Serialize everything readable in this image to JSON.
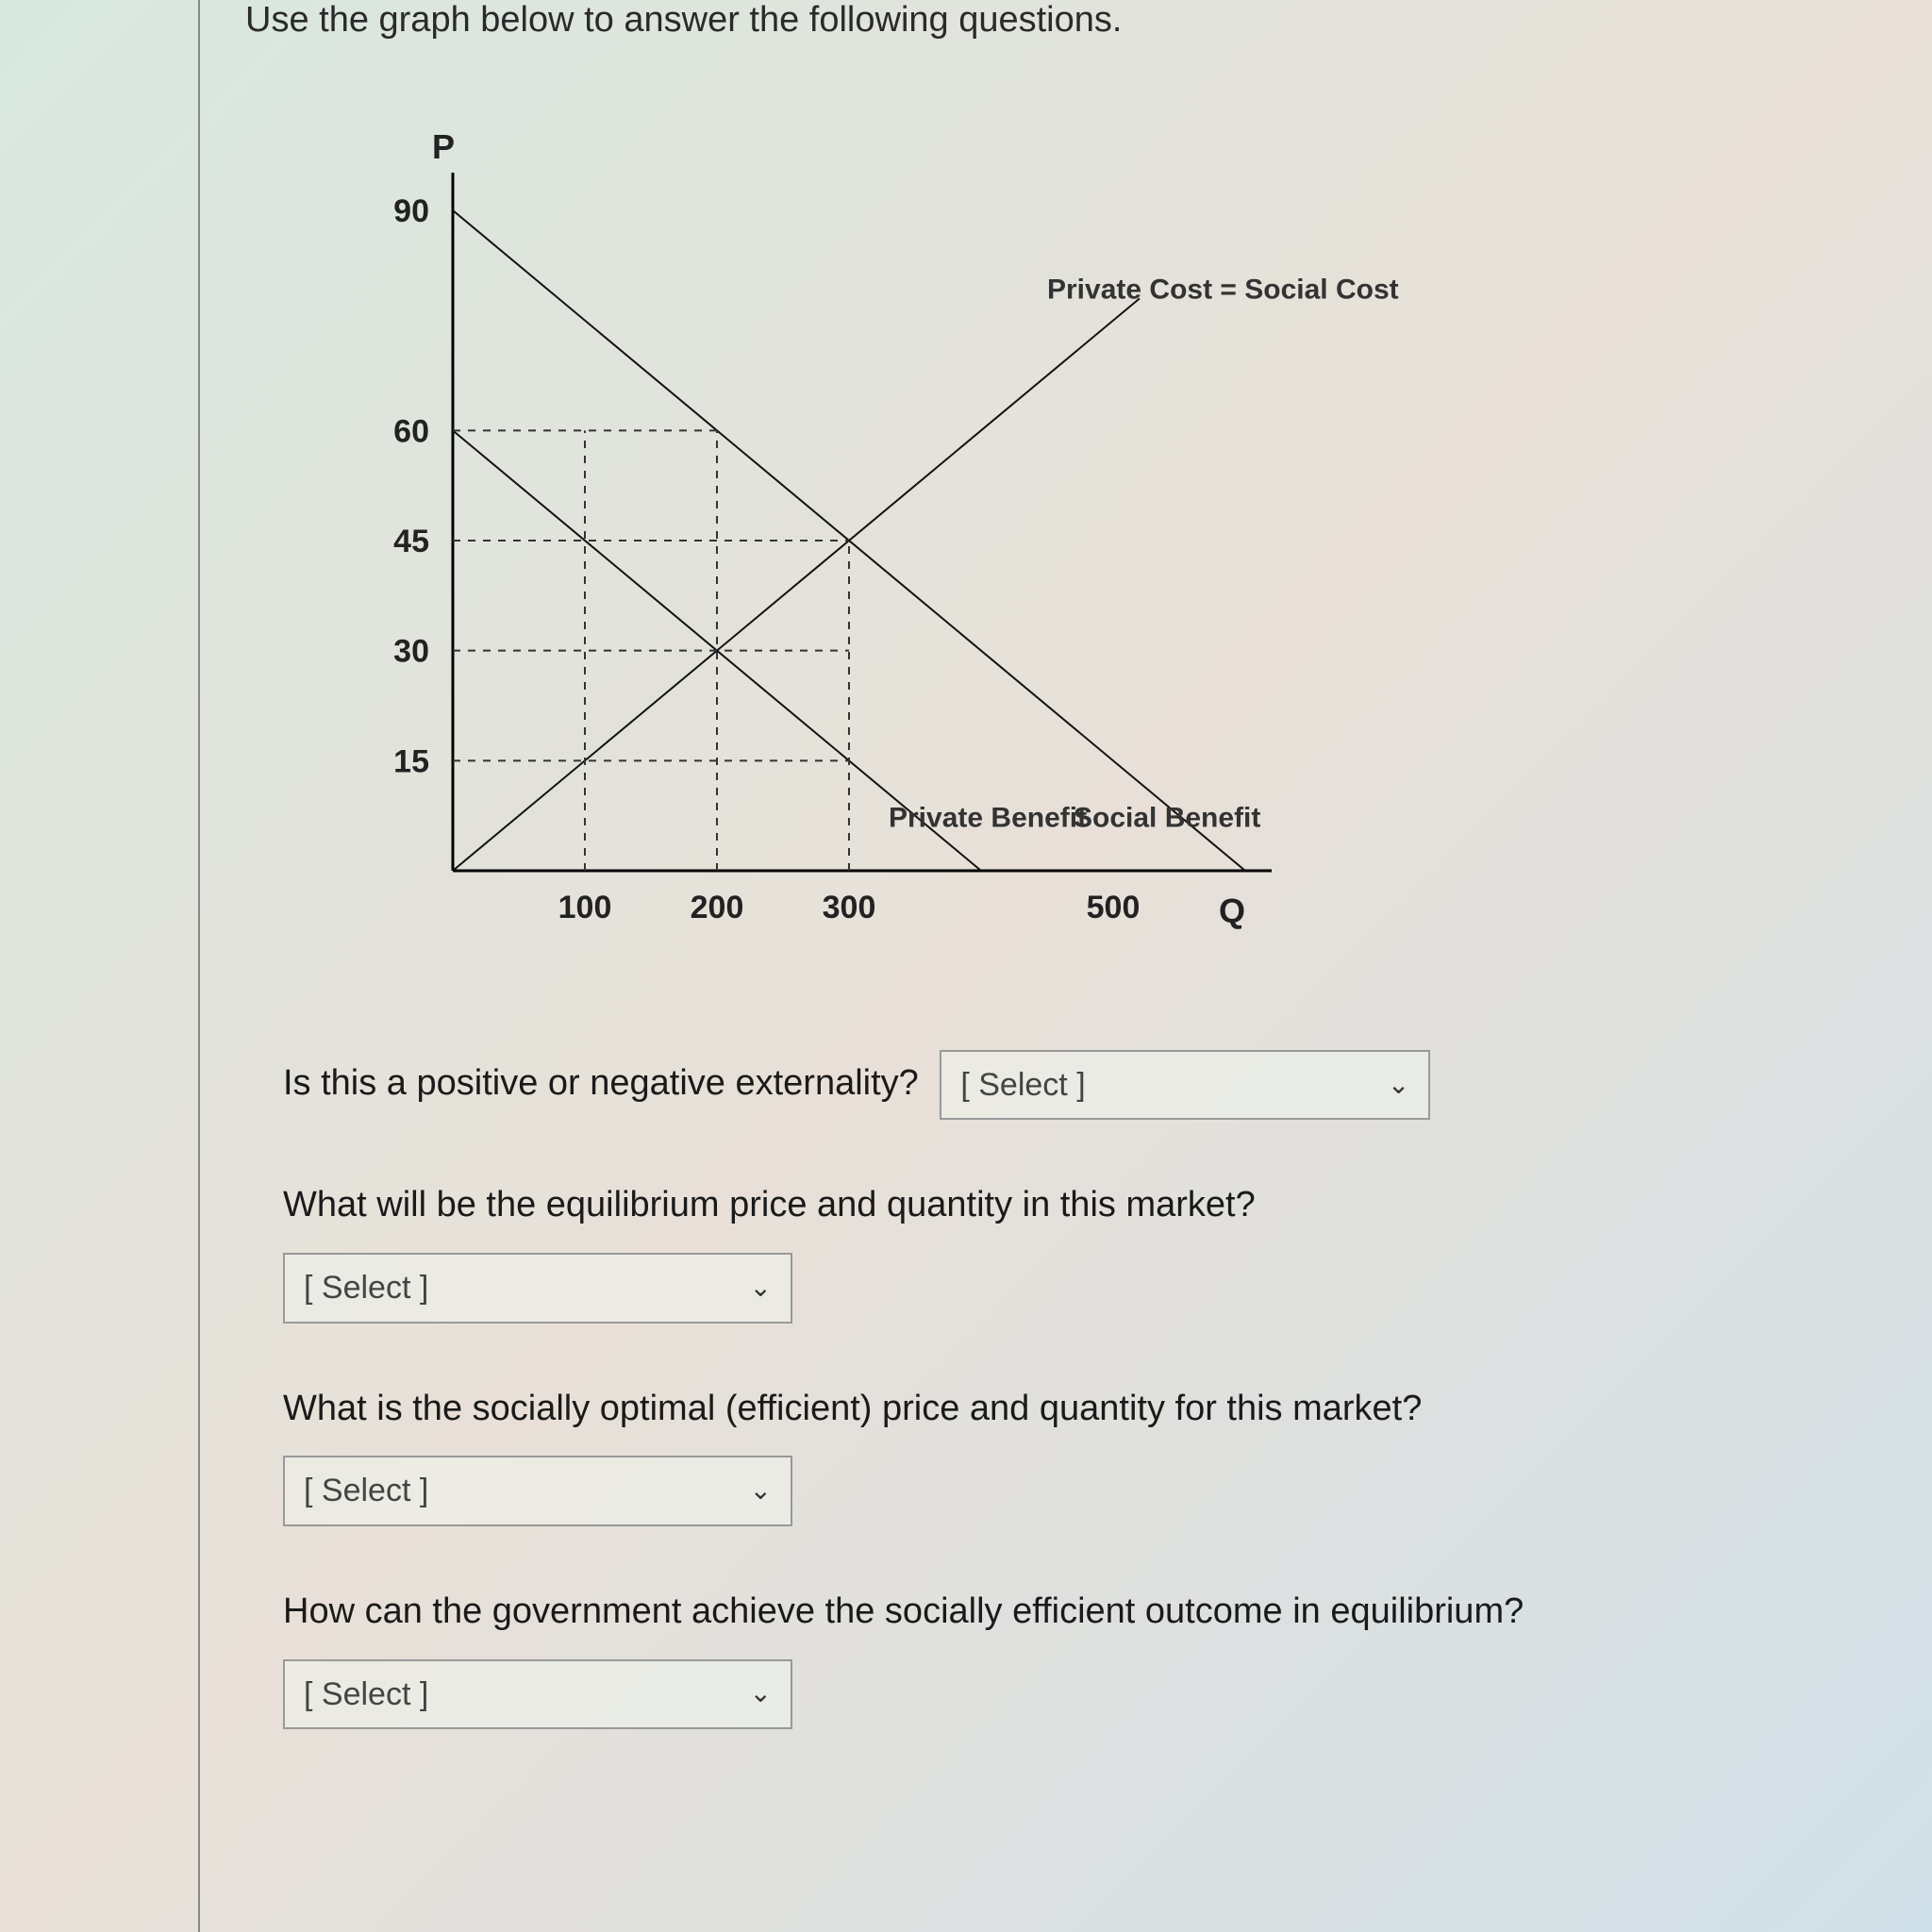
{
  "instruction": "Use the graph below to answer the following questions.",
  "chart": {
    "y_axis_label": "P",
    "x_axis_label": "Q",
    "y_ticks": [
      90,
      60,
      45,
      30,
      15
    ],
    "x_ticks": [
      100,
      200,
      300,
      500
    ],
    "x_tick_gap_after": 300,
    "pmax": 90,
    "qmax_chart": 600,
    "supply_label": "Private Cost = Social Cost",
    "private_benefit_label": "Private Benefit",
    "social_benefit_label": "Social Benefit",
    "axis_color": "#000000",
    "line_color": "#111111",
    "dash_color": "#333333",
    "dash_pattern": "8,8",
    "line_width": 2,
    "dash_width": 2,
    "ref_q": [
      100,
      200,
      300
    ],
    "ref_p": [
      15,
      30,
      45,
      60
    ]
  },
  "questions": {
    "q1": "Is this a positive or negative externality?",
    "q2": "What will be the equilibrium price and quantity in this market?",
    "q3": "What is the socially optimal (efficient) price and quantity for this market?",
    "q4": "How can the government achieve the socially efficient outcome in equilibrium?"
  },
  "select_placeholder": "[ Select ]"
}
